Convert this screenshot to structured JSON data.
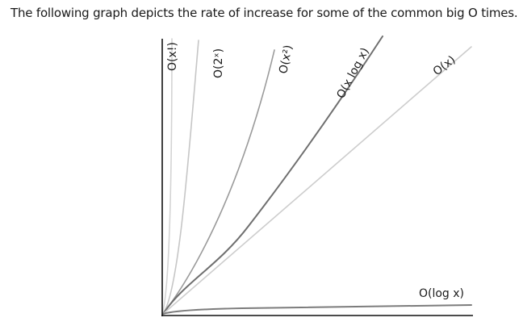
{
  "caption": "The following graph depicts the rate of increase for some of the common big O times.",
  "chart_data": {
    "type": "line",
    "title": "",
    "xlabel": "",
    "ylabel": "",
    "grid": false,
    "axis_ticks": false,
    "series": [
      {
        "id": "factorial",
        "name": "O(x!)",
        "color": "#d4d4d4"
      },
      {
        "id": "exponential",
        "name": "O(2ˣ)",
        "color": "#c6c6c6"
      },
      {
        "id": "quadratic",
        "name": "O(x²)",
        "color": "#9a9a9a"
      },
      {
        "id": "linearithmic",
        "name": "O(x log x)",
        "color": "#6f6f6f"
      },
      {
        "id": "linear",
        "name": "O(x)",
        "color": "#cdcdcd"
      },
      {
        "id": "logarithmic",
        "name": "O(log x)",
        "color": "#7c7c7c"
      }
    ]
  }
}
